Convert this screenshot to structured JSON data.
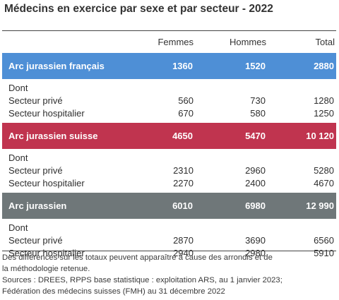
{
  "title": "Médecins en exercice par sexe et par secteur - 2022",
  "columns": {
    "label": "",
    "femmes": "Femmes",
    "hommes": "Hommes",
    "total": "Total"
  },
  "groups": [
    {
      "name": "Arc jurassien français",
      "color": "#4e8fd6",
      "femmes": "1360",
      "hommes": "1520",
      "total": "2880",
      "dont": "Dont",
      "rows": [
        {
          "label": "Secteur privé",
          "femmes": "560",
          "hommes": "730",
          "total": "1280"
        },
        {
          "label": "Secteur hospitalier",
          "femmes": "670",
          "hommes": "580",
          "total": "1250"
        }
      ]
    },
    {
      "name": "Arc jurassien suisse",
      "color": "#c0344f",
      "femmes": "4650",
      "hommes": "5470",
      "total": "10 120",
      "dont": "Dont",
      "rows": [
        {
          "label": "Secteur privé",
          "femmes": "2310",
          "hommes": "2960",
          "total": "5280"
        },
        {
          "label": "Secteur hospitalier",
          "femmes": "2270",
          "hommes": "2400",
          "total": "4670"
        }
      ]
    },
    {
      "name": "Arc jurassien",
      "color": "#6f7779",
      "femmes": "6010",
      "hommes": "6980",
      "total": "12 990",
      "dont": "Dont",
      "rows": [
        {
          "label": "Secteur privé",
          "femmes": "2870",
          "hommes": "3690",
          "total": "6560"
        },
        {
          "label": "Secteur hospitalier",
          "femmes": "2940",
          "hommes": "2980",
          "total": "5910"
        }
      ]
    }
  ],
  "notes": [
    "Des différences sur les totaux peuvent apparaître à cause des arrondis et de",
    "la méthodologie retenue.",
    "Sources : DREES, RPPS base statistique : exploitation ARS, au 1 janvier 2023;",
    "Fédération des médecins suisses (FMH) au 31 décembre 2022"
  ]
}
